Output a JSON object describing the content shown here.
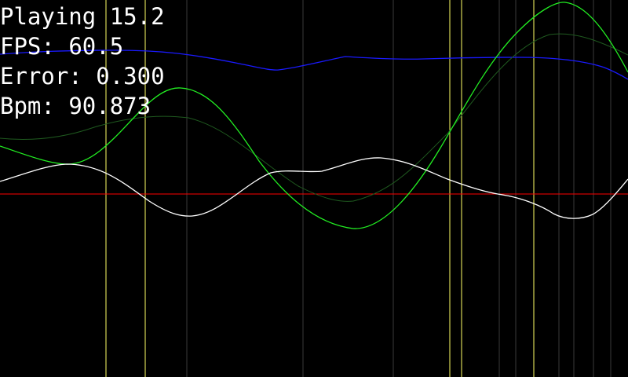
{
  "hud": {
    "playing_label": "Playing",
    "playing_value": "15.2",
    "fps_label": "FPS:",
    "fps_value": "60.5",
    "error_label": "Error:",
    "error_value": "0.300",
    "bpm_label": "Bpm:",
    "bpm_value": "90.873"
  },
  "colors": {
    "background": "#000000",
    "text": "#ffffff",
    "baseline": "#ff0000",
    "blue_curve": "#1a1aff",
    "green_curve": "#22ee22",
    "green_curve_dim": "#1f5a1f",
    "white_curve": "#ffffff",
    "beat_marker_bright": "#ffff66",
    "beat_marker_dim": "#5a5a30",
    "grid_marker": "#3a3a3a"
  }
}
